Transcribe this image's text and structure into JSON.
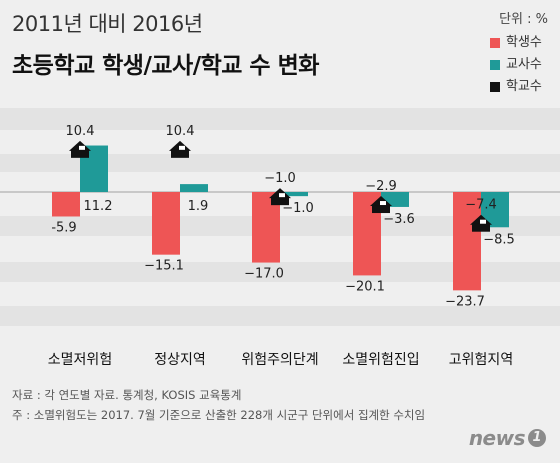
{
  "header": {
    "title_line1": "2011년 대비 2016년",
    "title_line2": "초등학교 학생/교사/학교 수 변화",
    "unit": "단위 : %"
  },
  "chart_data": {
    "type": "bar",
    "categories": [
      "소멸저위험",
      "정상지역",
      "위험주의단계",
      "소멸위험진입",
      "고위험지역"
    ],
    "series": [
      {
        "name": "학생수",
        "values": [
          -5.9,
          -15.1,
          -17.0,
          -20.1,
          -23.7
        ],
        "color": "#ee5555"
      },
      {
        "name": "교사수",
        "values": [
          11.2,
          1.9,
          -1.0,
          -3.6,
          -8.5
        ],
        "color": "#1f9a98"
      },
      {
        "name": "학교수",
        "values": [
          10.4,
          10.4,
          -1.0,
          -2.9,
          -7.4
        ],
        "color": "#111111"
      }
    ],
    "value_labels": {
      "학생수": [
        "-5.9",
        "−15.1",
        "−17.0",
        "−20.1",
        "−23.7"
      ],
      "교사수": [
        "11.2",
        "1.9",
        "−1.0",
        "−3.6",
        "−8.5"
      ],
      "학교수": [
        "10.4",
        "10.4",
        "−1.0",
        "−2.9",
        "−7.4"
      ]
    },
    "legend_position": "top-right",
    "grid": true
  },
  "notes": {
    "source": "자료 : 각 연도별 자료. 통계청, KOSIS 교육통계",
    "footnote": "주 : 소멸위험도는 2017. 7월 기준으로 산출한 228개 시군구 단위에서 집계한 수치임"
  },
  "brand": {
    "text": "news",
    "mark": "1"
  }
}
